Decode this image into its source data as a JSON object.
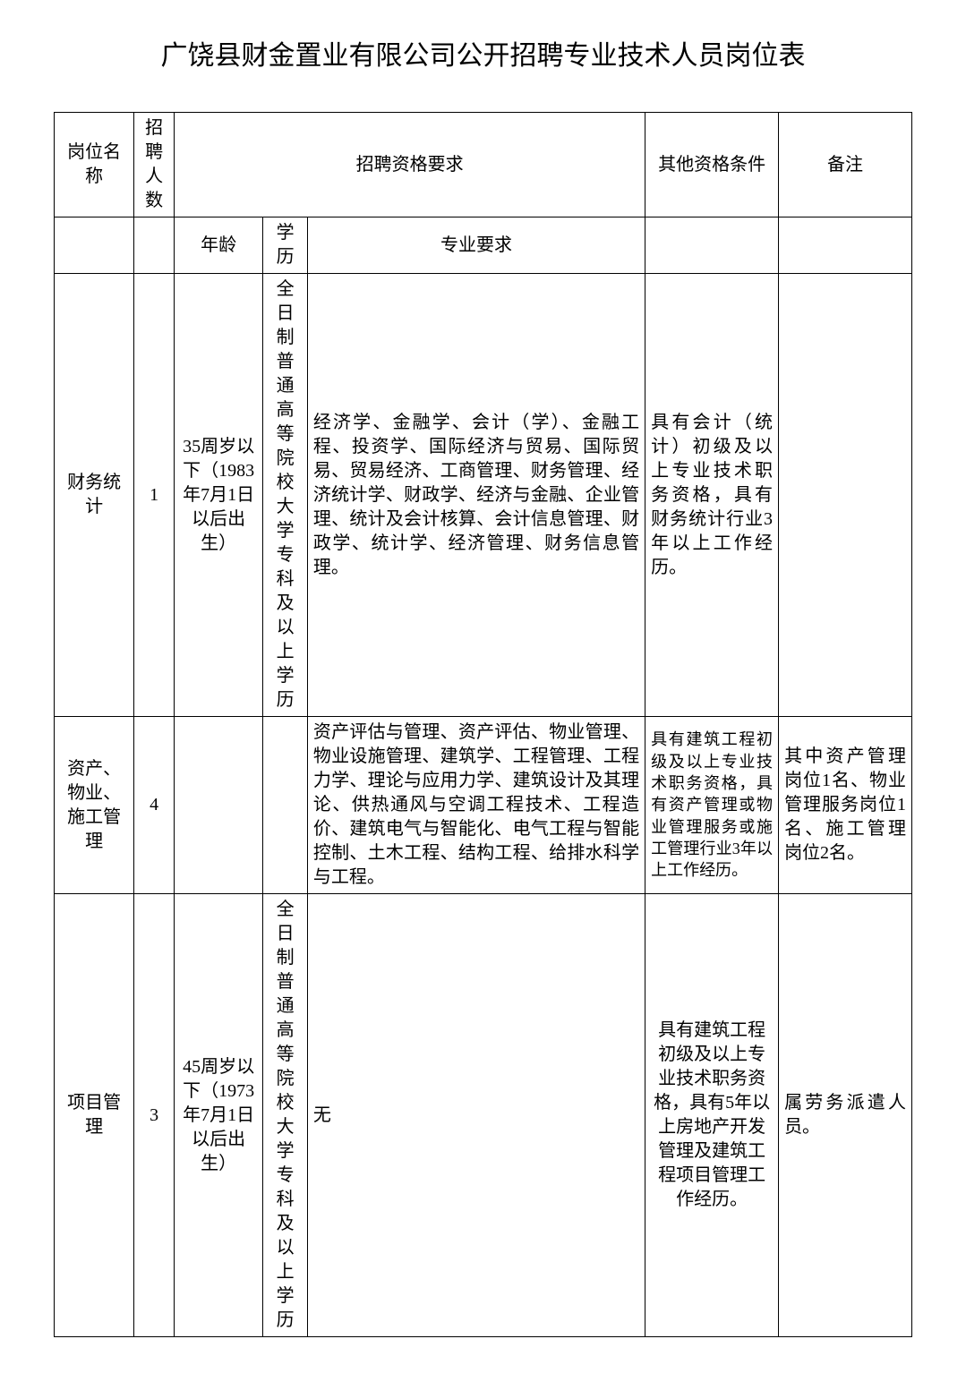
{
  "title": "广饶县财金置业有限公司公开招聘专业技术人员岗位表",
  "headers": {
    "position": "岗位名称",
    "count": "招聘人数",
    "requirements": "招聘资格要求",
    "other": "其他资格条件",
    "note": "备注",
    "age": "年龄",
    "edu": "学历",
    "major": "专业要求"
  },
  "rows": [
    {
      "position": "财务统计",
      "count": "1",
      "age": "35周岁以下（1983年7月1日以后出生）",
      "edu": "全日制普通高等院校大学专科及以上学历",
      "major": "经济学、金融学、会计（学）、金融工程、投资学、国际经济与贸易、国际贸易、贸易经济、工商管理、财务管理、经济统计学、财政学、经济与金融、企业管理、统计及会计核算、会计信息管理、财政学、统计学、经济管理、财务信息管理。",
      "other": "具有会计（统计）初级及以上专业技术职务资格，具有财务统计行业3年以上工作经历。",
      "note": ""
    },
    {
      "position": "资产、物业、施工管理",
      "count": "4",
      "age": "",
      "edu": "",
      "major": "资产评估与管理、资产评估、物业管理、物业设施管理、建筑学、工程管理、工程力学、理论与应用力学、建筑设计及其理论、供热通风与空调工程技术、工程造价、建筑电气与智能化、电气工程与智能控制、土木工程、结构工程、给排水科学与工程。",
      "other": "具有建筑工程初级及以上专业技术职务资格，具有资产管理或物业管理服务或施工管理行业3年以上工作经历。",
      "note": "其中资产管理岗位1名、物业管理服务岗位1名、施工管理岗位2名。"
    },
    {
      "position": "项目管理",
      "count": "3",
      "age": "45周岁以下（1973年7月1日以后出生）",
      "edu": "全日制普通高等院校大学专科及以上学历",
      "major": "无",
      "other": "具有建筑工程初级及以上专业技术职务资格，具有5年以上房地产开发管理及建筑工程项目管理工作经历。",
      "note": "属劳务派遣人员。"
    }
  ]
}
